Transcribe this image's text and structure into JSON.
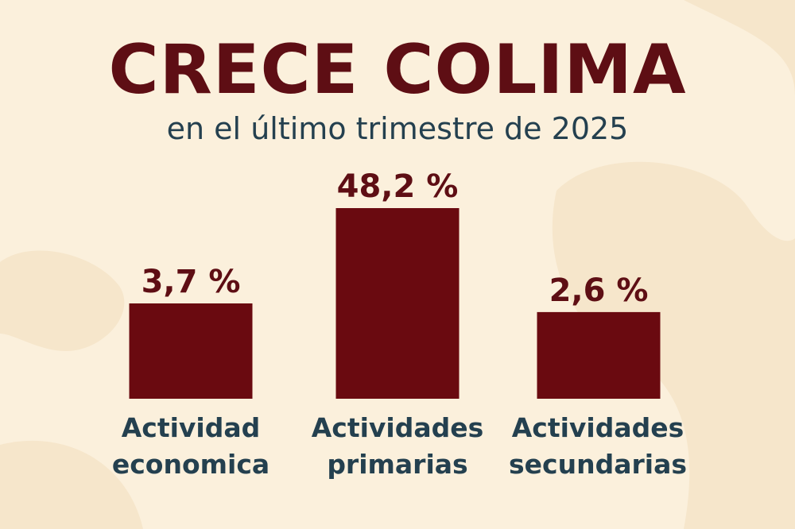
{
  "colors": {
    "background": "#fbf0dc",
    "bar": "#6a0a10",
    "title": "#5e0e14",
    "text": "#24404f"
  },
  "chart_data": {
    "type": "bar",
    "title": "CRECE COLIMA",
    "subtitle": "en el último trimestre de 2025",
    "categories": [
      {
        "line1": "Actividad",
        "line2": "economica"
      },
      {
        "line1": "Actividades",
        "line2": "primarias"
      },
      {
        "line1": "Actividades",
        "line2": "secundarias"
      }
    ],
    "values": [
      3.7,
      48.2,
      2.6
    ],
    "value_labels": [
      "3,7 %",
      "48,2 %",
      "2,6 %"
    ],
    "xlabel": "",
    "ylabel": "",
    "grid": false,
    "legend": "none"
  }
}
